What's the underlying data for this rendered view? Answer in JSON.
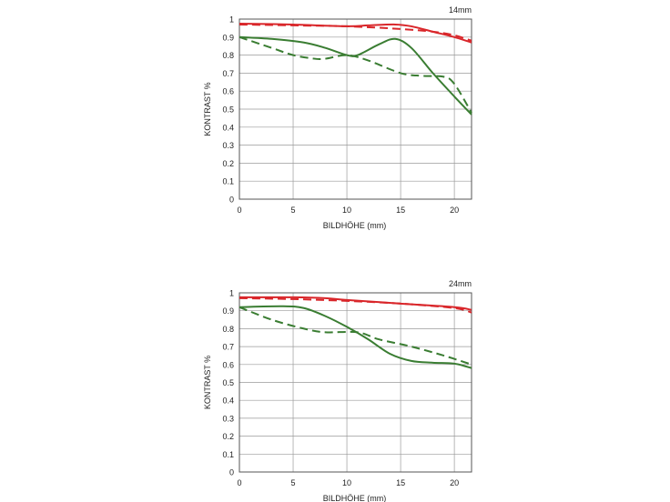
{
  "chart_data": [
    {
      "type": "line",
      "title": "14mm",
      "xlabel": "BILDHÖHE (mm)",
      "ylabel": "KONTRAST %",
      "xlim": [
        0,
        21.6
      ],
      "ylim": [
        0,
        1
      ],
      "xticks": [
        "0",
        "5",
        "10",
        "15",
        "20"
      ],
      "yticks": [
        "0",
        "0.1",
        "0.2",
        "0.3",
        "0.4",
        "0.5",
        "0.6",
        "0.7",
        "0.8",
        "0.9",
        "1"
      ],
      "grid": true,
      "series": [
        {
          "name": "red-solid",
          "color": "#d9262a",
          "dashed": false,
          "x": [
            0,
            5,
            10,
            12,
            14.5,
            16,
            18,
            20,
            21.6
          ],
          "y": [
            0.975,
            0.97,
            0.96,
            0.965,
            0.97,
            0.96,
            0.93,
            0.9,
            0.87
          ]
        },
        {
          "name": "red-dashed",
          "color": "#d9262a",
          "dashed": true,
          "x": [
            0,
            5,
            10,
            15,
            18,
            20,
            21.6
          ],
          "y": [
            0.97,
            0.965,
            0.96,
            0.945,
            0.93,
            0.91,
            0.88
          ]
        },
        {
          "name": "green-solid",
          "color": "#3a7d32",
          "dashed": false,
          "x": [
            0,
            3,
            6,
            8,
            10,
            11,
            13,
            14.5,
            16,
            18,
            20,
            21.6
          ],
          "y": [
            0.9,
            0.89,
            0.87,
            0.84,
            0.8,
            0.8,
            0.86,
            0.89,
            0.84,
            0.7,
            0.57,
            0.47
          ]
        },
        {
          "name": "green-dashed",
          "color": "#3a7d32",
          "dashed": true,
          "x": [
            0,
            3,
            5,
            7,
            8,
            10,
            12,
            15,
            17,
            19,
            20,
            21.6
          ],
          "y": [
            0.9,
            0.84,
            0.8,
            0.78,
            0.78,
            0.8,
            0.77,
            0.7,
            0.685,
            0.68,
            0.64,
            0.48
          ]
        }
      ]
    },
    {
      "type": "line",
      "title": "24mm",
      "xlabel": "BILDHÖHE (mm)",
      "ylabel": "KONTRAST %",
      "xlim": [
        0,
        21.6
      ],
      "ylim": [
        0,
        1
      ],
      "xticks": [
        "0",
        "5",
        "10",
        "15",
        "20"
      ],
      "yticks": [
        "0",
        "0.1",
        "0.2",
        "0.3",
        "0.4",
        "0.5",
        "0.6",
        "0.7",
        "0.8",
        "0.9",
        "1"
      ],
      "grid": true,
      "series": [
        {
          "name": "red-solid",
          "color": "#d9262a",
          "dashed": false,
          "x": [
            0,
            5,
            8,
            10,
            15,
            20,
            21.6
          ],
          "y": [
            0.975,
            0.975,
            0.97,
            0.96,
            0.94,
            0.92,
            0.905
          ]
        },
        {
          "name": "red-dashed",
          "color": "#d9262a",
          "dashed": true,
          "x": [
            0,
            5,
            10,
            15,
            20,
            21.6
          ],
          "y": [
            0.97,
            0.965,
            0.955,
            0.94,
            0.915,
            0.89
          ]
        },
        {
          "name": "green-solid",
          "color": "#3a7d32",
          "dashed": false,
          "x": [
            0,
            4,
            6,
            8,
            10,
            12,
            14,
            16,
            18,
            20,
            21.6
          ],
          "y": [
            0.92,
            0.925,
            0.915,
            0.87,
            0.81,
            0.74,
            0.66,
            0.62,
            0.61,
            0.605,
            0.58
          ]
        },
        {
          "name": "green-dashed",
          "color": "#3a7d32",
          "dashed": true,
          "x": [
            0,
            3,
            6,
            8,
            11,
            13,
            16,
            19,
            21.6
          ],
          "y": [
            0.92,
            0.85,
            0.8,
            0.78,
            0.78,
            0.74,
            0.7,
            0.65,
            0.6
          ]
        }
      ]
    }
  ]
}
